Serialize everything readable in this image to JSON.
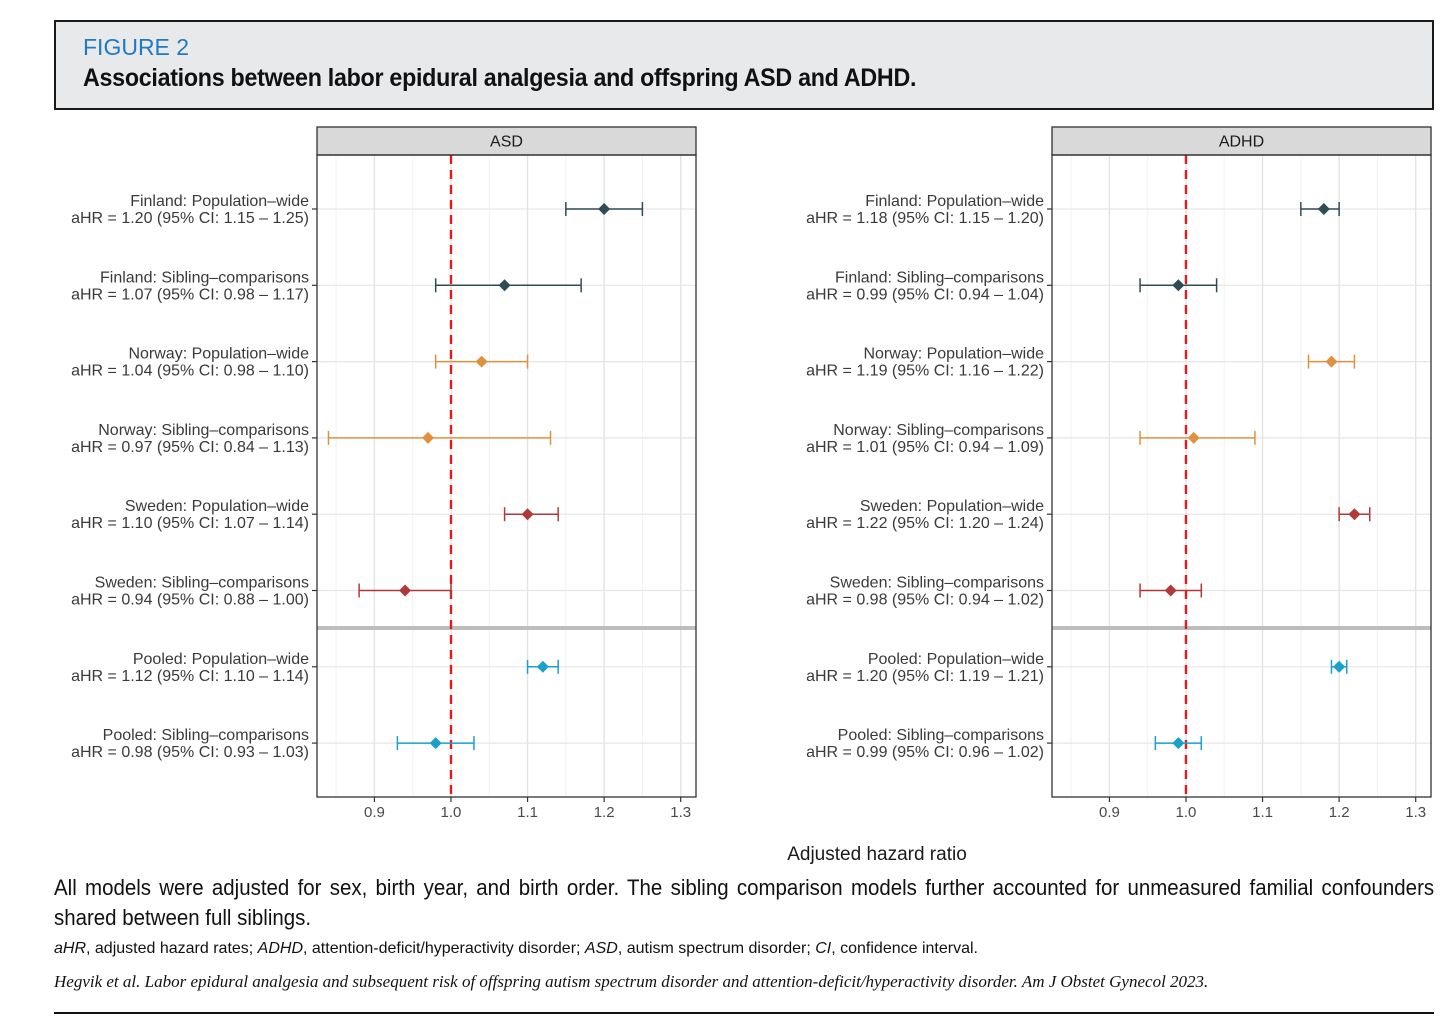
{
  "figure": {
    "label": "FIGURE 2",
    "title": "Associations between labor epidural analgesia and offspring ASD and ADHD."
  },
  "notes": {
    "main": "All models were adjusted for sex, birth year, and birth order. The sibling comparison models further accounted for unmeasured familial confounders shared between full siblings.",
    "abbreviations": [
      {
        "abbr": "aHR",
        "def": ", adjusted hazard rates; "
      },
      {
        "abbr": "ADHD",
        "def": ", attention-deficit/hyperactivity disorder; "
      },
      {
        "abbr": "ASD",
        "def": ", autism spectrum disorder; "
      },
      {
        "abbr": "CI",
        "def": ", confidence interval."
      }
    ],
    "citation": "Hegvik et al. Labor epidural analgesia and subsequent risk of offspring autism spectrum disorder and attention-deficit/hyperactivity disorder. Am J Obstet Gynecol 2023."
  },
  "chart_data": {
    "type": "forest",
    "xlabel": "Adjusted hazard ratio",
    "xlim": [
      0.825,
      1.32
    ],
    "xticks": [
      0.9,
      1.0,
      1.1,
      1.2,
      1.3
    ],
    "xtick_labels": [
      "0.9",
      "1.0",
      "1.1",
      "1.2",
      "1.3"
    ],
    "reference_line": 1.0,
    "reference_color": "#e41a1c",
    "grid": true,
    "group_colors": {
      "Finland": "#2f4b55",
      "Norway": "#e0913f",
      "Sweden": "#b03a3a",
      "Pooled": "#1aa0cc"
    },
    "panels": [
      {
        "name": "ASD",
        "rows": [
          {
            "group": "Finland",
            "label": "Finland: Population–wide",
            "stat": "aHR = 1.20 (95% CI: 1.15 – 1.25)",
            "est": 1.2,
            "lo": 1.15,
            "hi": 1.25
          },
          {
            "group": "Finland",
            "label": "Finland: Sibling–comparisons",
            "stat": "aHR = 1.07 (95% CI: 0.98 – 1.17)",
            "est": 1.07,
            "lo": 0.98,
            "hi": 1.17
          },
          {
            "group": "Norway",
            "label": "Norway: Population–wide",
            "stat": "aHR = 1.04 (95% CI: 0.98 – 1.10)",
            "est": 1.04,
            "lo": 0.98,
            "hi": 1.1
          },
          {
            "group": "Norway",
            "label": "Norway: Sibling–comparisons",
            "stat": "aHR = 0.97 (95% CI: 0.84 – 1.13)",
            "est": 0.97,
            "lo": 0.84,
            "hi": 1.13
          },
          {
            "group": "Sweden",
            "label": "Sweden: Population–wide",
            "stat": "aHR = 1.10 (95% CI: 1.07 – 1.14)",
            "est": 1.1,
            "lo": 1.07,
            "hi": 1.14
          },
          {
            "group": "Sweden",
            "label": "Sweden: Sibling–comparisons",
            "stat": "aHR = 0.94 (95% CI: 0.88 – 1.00)",
            "est": 0.94,
            "lo": 0.88,
            "hi": 1.0
          },
          {
            "group": "Pooled",
            "label": "Pooled: Population–wide",
            "stat": "aHR = 1.12 (95% CI: 1.10 – 1.14)",
            "est": 1.12,
            "lo": 1.1,
            "hi": 1.14
          },
          {
            "group": "Pooled",
            "label": "Pooled: Sibling–comparisons",
            "stat": "aHR = 0.98 (95% CI: 0.93 – 1.03)",
            "est": 0.98,
            "lo": 0.93,
            "hi": 1.03
          }
        ]
      },
      {
        "name": "ADHD",
        "rows": [
          {
            "group": "Finland",
            "label": "Finland: Population–wide",
            "stat": "aHR = 1.18 (95% CI: 1.15 – 1.20)",
            "est": 1.18,
            "lo": 1.15,
            "hi": 1.2
          },
          {
            "group": "Finland",
            "label": "Finland: Sibling–comparisons",
            "stat": "aHR = 0.99 (95% CI: 0.94 – 1.04)",
            "est": 0.99,
            "lo": 0.94,
            "hi": 1.04
          },
          {
            "group": "Norway",
            "label": "Norway: Population–wide",
            "stat": "aHR = 1.19 (95% CI: 1.16 – 1.22)",
            "est": 1.19,
            "lo": 1.16,
            "hi": 1.22
          },
          {
            "group": "Norway",
            "label": "Norway: Sibling–comparisons",
            "stat": "aHR = 1.01 (95% CI: 0.94 – 1.09)",
            "est": 1.01,
            "lo": 0.94,
            "hi": 1.09
          },
          {
            "group": "Sweden",
            "label": "Sweden: Population–wide",
            "stat": "aHR = 1.22 (95% CI: 1.20 – 1.24)",
            "est": 1.22,
            "lo": 1.2,
            "hi": 1.24
          },
          {
            "group": "Sweden",
            "label": "Sweden: Sibling–comparisons",
            "stat": "aHR = 0.98 (95% CI: 0.94 – 1.02)",
            "est": 0.98,
            "lo": 0.94,
            "hi": 1.02
          },
          {
            "group": "Pooled",
            "label": "Pooled: Population–wide",
            "stat": "aHR = 1.20 (95% CI: 1.19 – 1.21)",
            "est": 1.2,
            "lo": 1.19,
            "hi": 1.21
          },
          {
            "group": "Pooled",
            "label": "Pooled: Sibling–comparisons",
            "stat": "aHR = 0.99 (95% CI: 0.96 – 1.02)",
            "est": 0.99,
            "lo": 0.96,
            "hi": 1.02
          }
        ]
      }
    ]
  }
}
